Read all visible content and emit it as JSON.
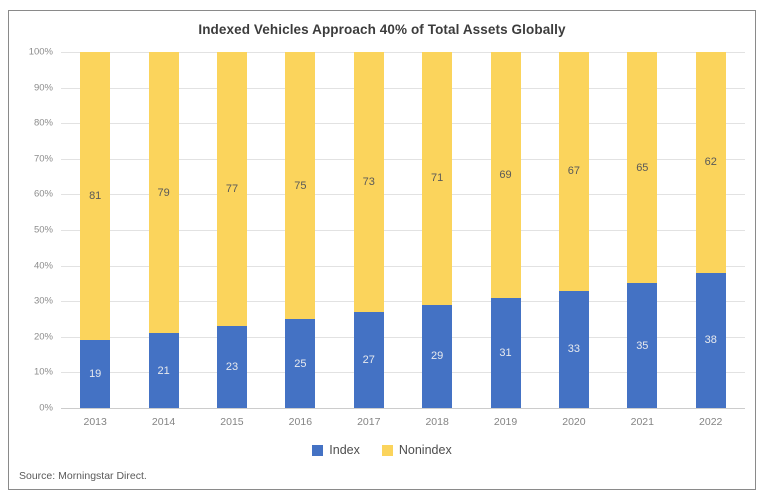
{
  "source": "Source: Morningstar Direct.",
  "colors": {
    "index_blue": "#4472C4",
    "nonindex_yellow": "#FBD45C",
    "gridline": "#E2E2E2",
    "axis_text": "#8C8C8C"
  },
  "chart_data": {
    "type": "bar",
    "stacked": true,
    "title": "Indexed Vehicles Approach 40% of Total Assets Globally",
    "categories": [
      "2013",
      "2014",
      "2015",
      "2016",
      "2017",
      "2018",
      "2019",
      "2020",
      "2021",
      "2022"
    ],
    "series": [
      {
        "name": "Index",
        "color": "#4472C4",
        "label_color": "#E8EAEE",
        "values": [
          19,
          21,
          23,
          25,
          27,
          29,
          31,
          33,
          35,
          38
        ]
      },
      {
        "name": "Nonindex",
        "color": "#FBD45C",
        "label_color": "#595959",
        "values": [
          81,
          79,
          77,
          75,
          73,
          71,
          69,
          67,
          65,
          62
        ]
      }
    ],
    "xlabel": "",
    "ylabel": "",
    "ylim": [
      0,
      100
    ],
    "ytick_step": 10,
    "ytick_suffix": "%",
    "grid": true,
    "legend_position": "bottom"
  }
}
